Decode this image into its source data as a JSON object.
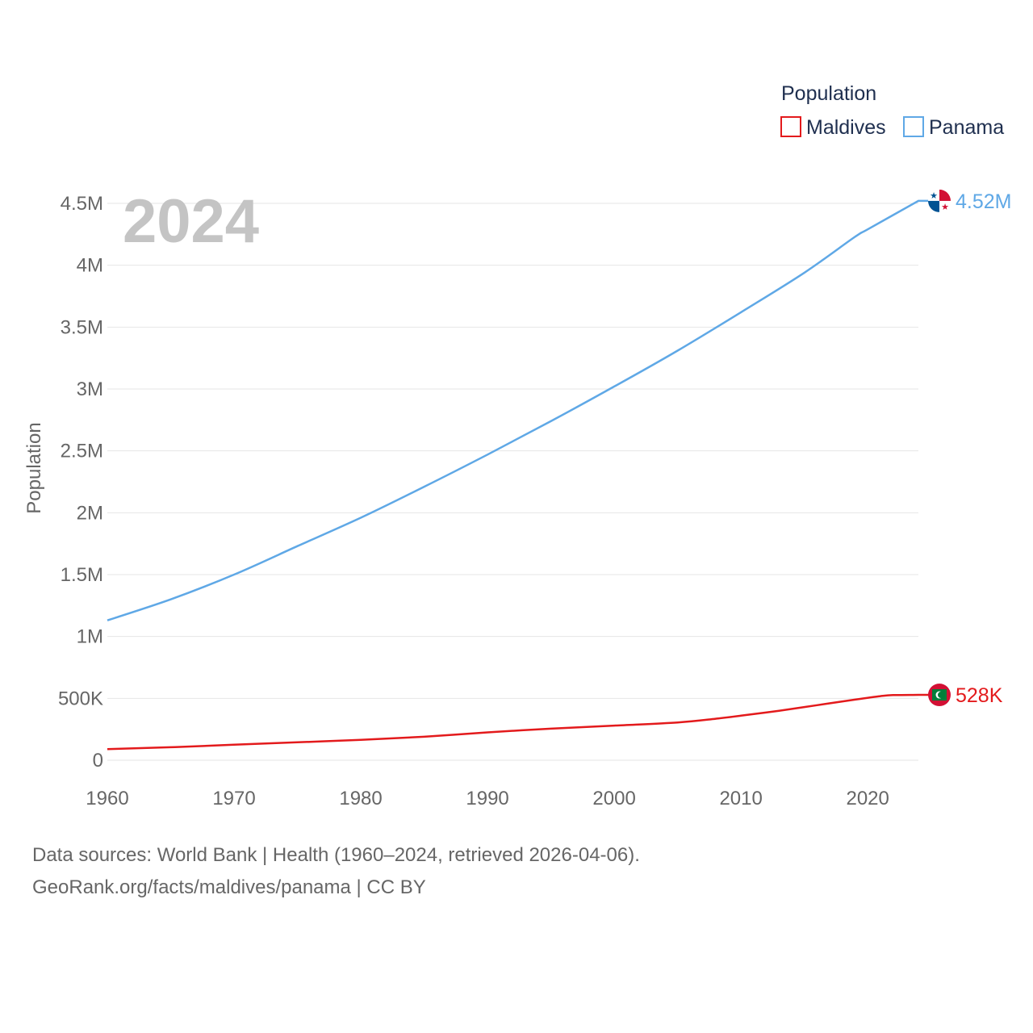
{
  "chart_data": {
    "type": "line",
    "title": "Population",
    "year": "2024",
    "xlabel": "",
    "ylabel": "Population",
    "xlim": [
      1960,
      2024
    ],
    "ylim": [
      0,
      4500000
    ],
    "x_ticks": [
      1960,
      1970,
      1980,
      1990,
      2000,
      2010,
      2020
    ],
    "y_ticks": [
      0,
      500000,
      1000000,
      1500000,
      2000000,
      2500000,
      3000000,
      3500000,
      4000000,
      4500000
    ],
    "y_tick_labels": [
      "0",
      "500K",
      "1M",
      "1.5M",
      "2M",
      "2.5M",
      "3M",
      "3.5M",
      "4M",
      "4.5M"
    ],
    "grid": true,
    "legend_position": "top-right",
    "series": [
      {
        "name": "Maldives",
        "color": "#e31a1c",
        "end_label": "528K",
        "flag": "maldives-flag",
        "x": [
          1960,
          1965,
          1970,
          1975,
          1980,
          1985,
          1990,
          1995,
          2000,
          2005,
          2008,
          2010,
          2013,
          2016,
          2019,
          2021,
          2022,
          2024
        ],
        "values": [
          90000,
          105000,
          125000,
          145000,
          165000,
          190000,
          225000,
          255000,
          280000,
          305000,
          335000,
          360000,
          400000,
          445000,
          490000,
          518000,
          526000,
          528000
        ]
      },
      {
        "name": "Panama",
        "color": "#5fa8e6",
        "end_label": "4.52M",
        "flag": "panama-flag",
        "x": [
          1960,
          1965,
          1970,
          1975,
          1980,
          1985,
          1990,
          1995,
          2000,
          2005,
          2010,
          2015,
          2019,
          2020,
          2024
        ],
        "values": [
          1130000,
          1300000,
          1500000,
          1730000,
          1960000,
          2210000,
          2470000,
          2740000,
          3020000,
          3310000,
          3620000,
          3940000,
          4230000,
          4290000,
          4520000
        ]
      }
    ]
  },
  "footer": {
    "line1": "Data sources: World Bank | Health (1960–2024, retrieved 2026-04-06).",
    "line2": "GeoRank.org/facts/maldives/panama | CC BY"
  }
}
